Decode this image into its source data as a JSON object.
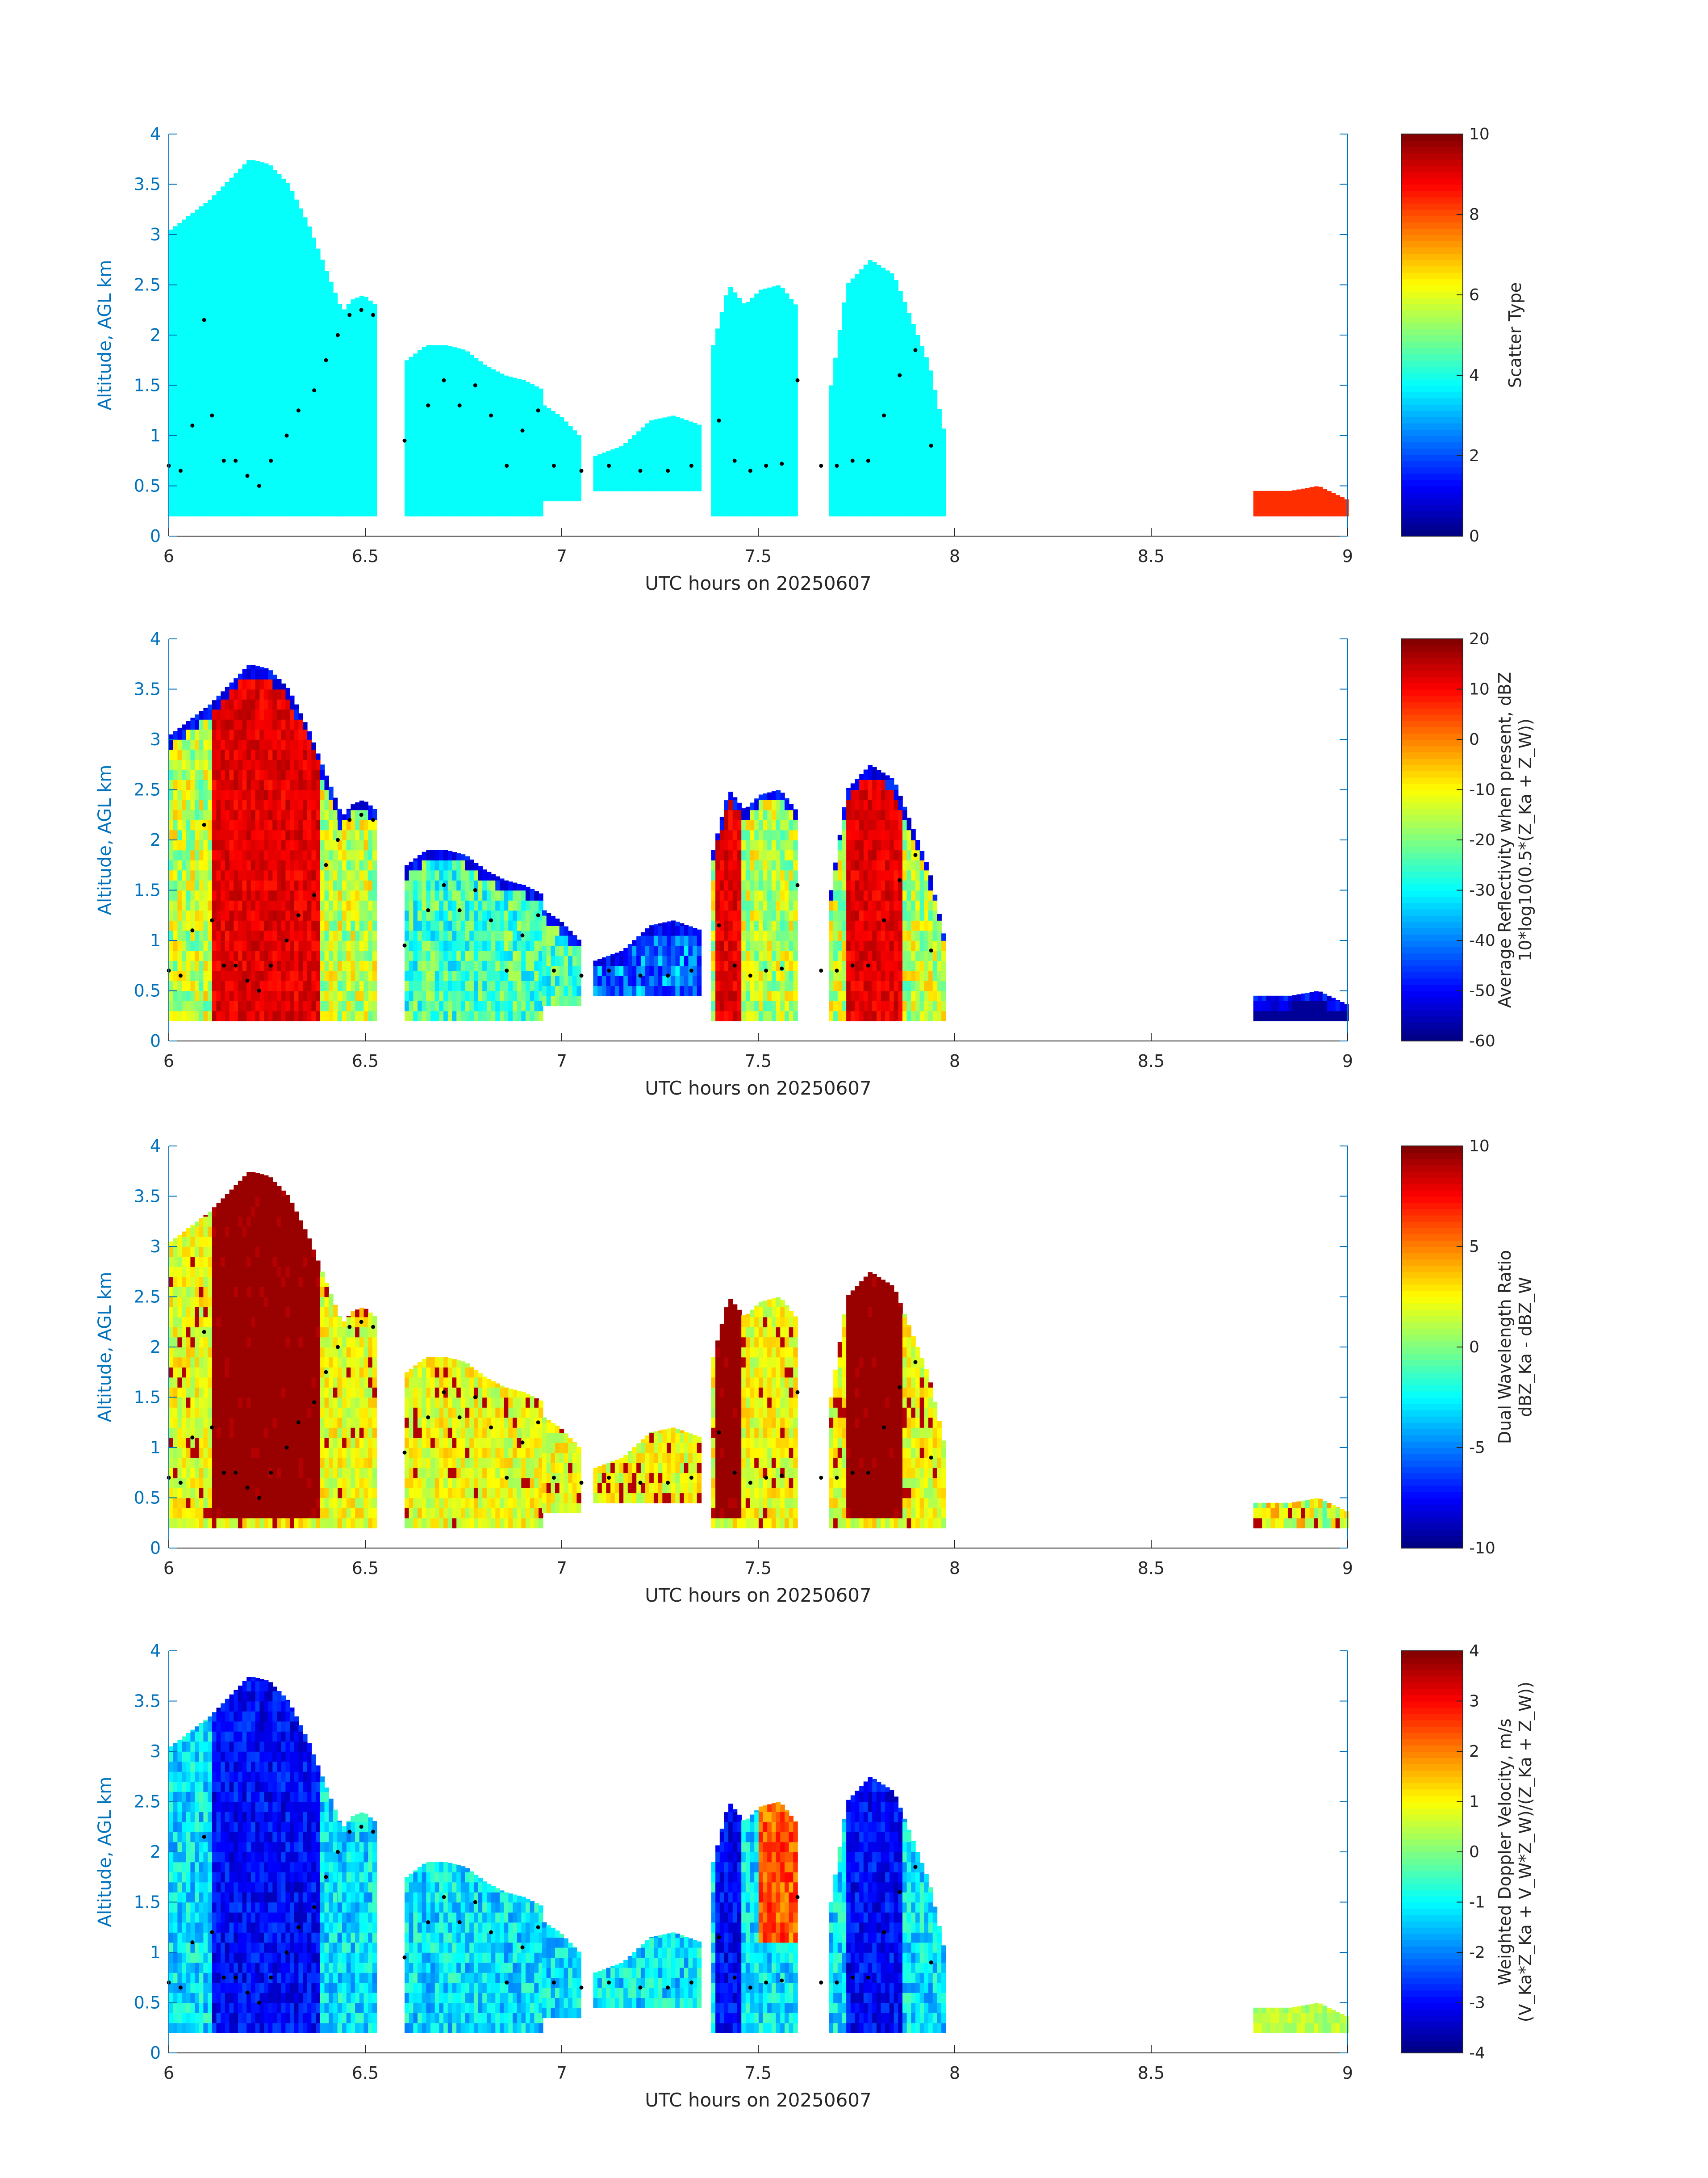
{
  "chart_data": [
    {
      "type": "heatmap",
      "xlabel": "UTC hours on 20250607",
      "ylabel": "Altitude, AGL km",
      "xlim": [
        6,
        9
      ],
      "ylim": [
        0,
        4
      ],
      "xticks": [
        "6",
        "6.5",
        "7",
        "7.5",
        "8",
        "8.5",
        "9"
      ],
      "yticks": [
        "0",
        "0.5",
        "1",
        "1.5",
        "2",
        "2.5",
        "3",
        "3.5",
        "4"
      ],
      "colorbar": {
        "label_lines": [
          "Scatter Type"
        ],
        "clim": [
          0,
          10
        ],
        "ticks": [
          "0",
          "2",
          "4",
          "6",
          "8",
          "10"
        ],
        "colormap": "jet"
      },
      "field": "scatter_type",
      "dominant_value": 3.8,
      "secondary_value": 8.3
    },
    {
      "type": "heatmap",
      "xlabel": "UTC hours on 20250607",
      "ylabel": "Altitude, AGL km",
      "xlim": [
        6,
        9
      ],
      "ylim": [
        0,
        4
      ],
      "xticks": [
        "6",
        "6.5",
        "7",
        "7.5",
        "8",
        "8.5",
        "9"
      ],
      "yticks": [
        "0",
        "0.5",
        "1",
        "1.5",
        "2",
        "2.5",
        "3",
        "3.5",
        "4"
      ],
      "colorbar": {
        "label_lines": [
          "Average Reflectivity when present, dBZ",
          "10*log10(0.5*(Z_Ka + Z_W))"
        ],
        "clim": [
          -60,
          20
        ],
        "ticks": [
          "-60",
          "-50",
          "-40",
          "-30",
          "-20",
          "-10",
          "0",
          "10",
          "20"
        ],
        "colormap": "jet"
      },
      "field": "reflectivity",
      "range_dbz": [
        -60,
        20
      ]
    },
    {
      "type": "heatmap",
      "xlabel": "UTC hours on 20250607",
      "ylabel": "Altitude, AGL km",
      "xlim": [
        6,
        9
      ],
      "ylim": [
        0,
        4
      ],
      "xticks": [
        "6",
        "6.5",
        "7",
        "7.5",
        "8",
        "8.5",
        "9"
      ],
      "yticks": [
        "0",
        "0.5",
        "1",
        "1.5",
        "2",
        "2.5",
        "3",
        "3.5",
        "4"
      ],
      "colorbar": {
        "label_lines": [
          "Dual Wavelength Ratio",
          "dBZ_Ka - dBZ_W"
        ],
        "clim": [
          -10,
          10
        ],
        "ticks": [
          "-10",
          "-5",
          "0",
          "5",
          "10"
        ],
        "colormap": "jet"
      },
      "field": "dual_wavelength_ratio",
      "range_db": [
        -10,
        10
      ]
    },
    {
      "type": "heatmap",
      "xlabel": "UTC hours on 20250607",
      "ylabel": "Altitude, AGL km",
      "xlim": [
        6,
        9
      ],
      "ylim": [
        0,
        4
      ],
      "xticks": [
        "6",
        "6.5",
        "7",
        "7.5",
        "8",
        "8.5",
        "9"
      ],
      "yticks": [
        "0",
        "0.5",
        "1",
        "1.5",
        "2",
        "2.5",
        "3",
        "3.5",
        "4"
      ],
      "colorbar": {
        "label_lines": [
          "Weighted Doppler Velocity, m/s",
          "(V_Ka*Z_Ka + V_W*Z_W)/(Z_Ka + Z_W))"
        ],
        "clim": [
          -4,
          4
        ],
        "ticks": [
          "-4",
          "-3",
          "-2",
          "-1",
          "0",
          "1",
          "2",
          "3",
          "4"
        ],
        "colormap": "jet"
      },
      "field": "doppler_velocity",
      "range_ms": [
        -4,
        4
      ]
    }
  ],
  "shared": {
    "cloud_segments": [
      {
        "t0": 6.0,
        "t1": 6.43,
        "base": 0.2,
        "top_profile": [
          [
            6.0,
            3.05
          ],
          [
            6.05,
            3.2
          ],
          [
            6.1,
            3.35
          ],
          [
            6.15,
            3.55
          ],
          [
            6.2,
            3.75
          ],
          [
            6.25,
            3.7
          ],
          [
            6.3,
            3.5
          ],
          [
            6.35,
            3.1
          ],
          [
            6.4,
            2.6
          ],
          [
            6.43,
            2.3
          ]
        ]
      },
      {
        "t0": 6.43,
        "t1": 6.52,
        "base": 0.2,
        "top_profile": [
          [
            6.43,
            2.2
          ],
          [
            6.46,
            2.35
          ],
          [
            6.49,
            2.4
          ],
          [
            6.52,
            2.3
          ]
        ]
      },
      {
        "t0": 6.6,
        "t1": 6.95,
        "base": 0.2,
        "top_profile": [
          [
            6.6,
            1.75
          ],
          [
            6.65,
            1.9
          ],
          [
            6.7,
            1.9
          ],
          [
            6.75,
            1.85
          ],
          [
            6.8,
            1.7
          ],
          [
            6.85,
            1.6
          ],
          [
            6.9,
            1.55
          ],
          [
            6.95,
            1.45
          ]
        ]
      },
      {
        "t0": 6.95,
        "t1": 7.04,
        "base": 0.35,
        "top_profile": [
          [
            6.95,
            1.3
          ],
          [
            6.99,
            1.2
          ],
          [
            7.04,
            1.0
          ]
        ]
      },
      {
        "t0": 7.08,
        "t1": 7.35,
        "base": 0.45,
        "top_profile": [
          [
            7.08,
            0.8
          ],
          [
            7.15,
            0.9
          ],
          [
            7.22,
            1.15
          ],
          [
            7.28,
            1.2
          ],
          [
            7.35,
            1.1
          ]
        ]
      },
      {
        "t0": 7.38,
        "t1": 7.6,
        "base": 0.2,
        "top_profile": [
          [
            7.38,
            1.9
          ],
          [
            7.42,
            2.5
          ],
          [
            7.46,
            2.3
          ],
          [
            7.5,
            2.45
          ],
          [
            7.55,
            2.5
          ],
          [
            7.6,
            2.25
          ]
        ]
      },
      {
        "t0": 7.68,
        "t1": 7.97,
        "base": 0.2,
        "top_profile": [
          [
            7.68,
            1.5
          ],
          [
            7.72,
            2.5
          ],
          [
            7.78,
            2.75
          ],
          [
            7.84,
            2.6
          ],
          [
            7.88,
            2.2
          ],
          [
            7.93,
            1.7
          ],
          [
            7.97,
            1.0
          ]
        ]
      },
      {
        "t0": 8.76,
        "t1": 9.0,
        "base": 0.2,
        "top_profile": [
          [
            8.76,
            0.45
          ],
          [
            8.85,
            0.45
          ],
          [
            8.92,
            0.5
          ],
          [
            9.0,
            0.35
          ]
        ]
      }
    ],
    "dotted_line": [
      [
        6.0,
        0.7
      ],
      [
        6.03,
        0.65
      ],
      [
        6.06,
        1.1
      ],
      [
        6.09,
        2.15
      ],
      [
        6.11,
        1.2
      ],
      [
        6.14,
        0.75
      ],
      [
        6.17,
        0.75
      ],
      [
        6.2,
        0.6
      ],
      [
        6.23,
        0.5
      ],
      [
        6.26,
        0.75
      ],
      [
        6.3,
        1.0
      ],
      [
        6.33,
        1.25
      ],
      [
        6.37,
        1.45
      ],
      [
        6.4,
        1.75
      ],
      [
        6.43,
        2.0
      ],
      [
        6.46,
        2.2
      ],
      [
        6.49,
        2.25
      ],
      [
        6.52,
        2.2
      ],
      [
        6.6,
        0.95
      ],
      [
        6.66,
        1.3
      ],
      [
        6.7,
        1.55
      ],
      [
        6.74,
        1.3
      ],
      [
        6.78,
        1.5
      ],
      [
        6.82,
        1.2
      ],
      [
        6.86,
        0.7
      ],
      [
        6.9,
        1.05
      ],
      [
        6.94,
        1.25
      ],
      [
        6.98,
        0.7
      ],
      [
        7.05,
        0.65
      ],
      [
        7.12,
        0.7
      ],
      [
        7.2,
        0.65
      ],
      [
        7.27,
        0.65
      ],
      [
        7.33,
        0.7
      ],
      [
        7.4,
        1.15
      ],
      [
        7.44,
        0.75
      ],
      [
        7.48,
        0.65
      ],
      [
        7.52,
        0.7
      ],
      [
        7.56,
        0.72
      ],
      [
        7.6,
        1.55
      ],
      [
        7.66,
        0.7
      ],
      [
        7.7,
        0.7
      ],
      [
        7.74,
        0.75
      ],
      [
        7.78,
        0.75
      ],
      [
        7.82,
        1.2
      ],
      [
        7.86,
        1.6
      ],
      [
        7.9,
        1.85
      ],
      [
        7.94,
        0.9
      ]
    ]
  }
}
